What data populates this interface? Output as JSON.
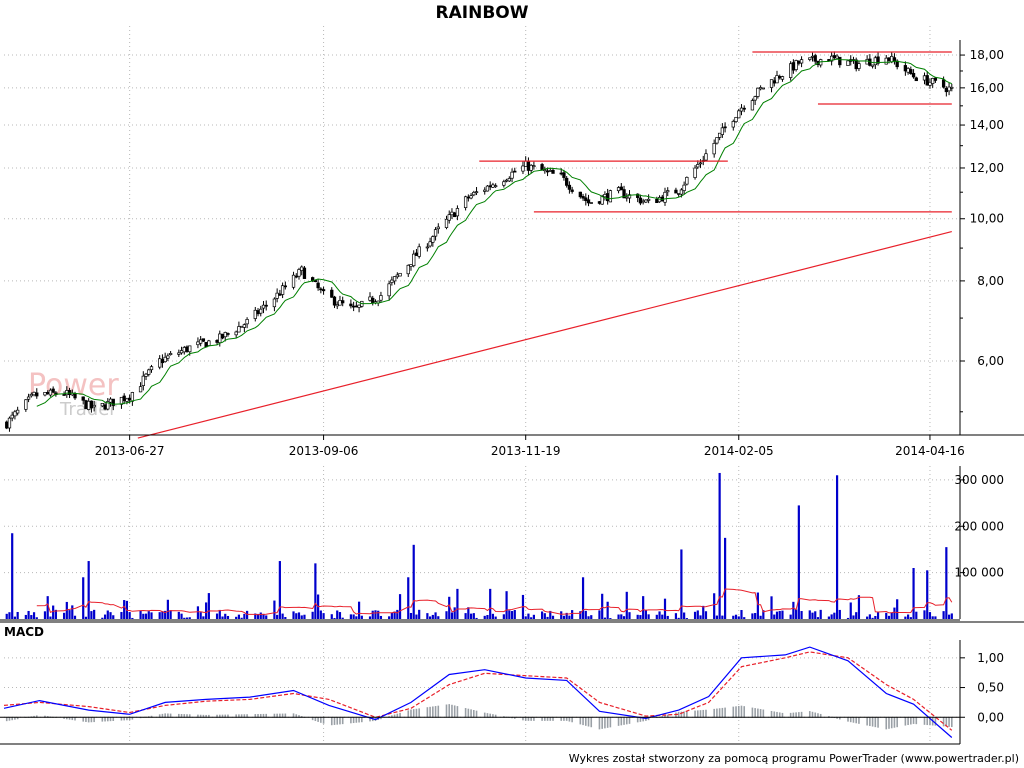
{
  "footer": "Wykres został stworzony za pomocą programu PowerTrader (www.powertrader.pl)",
  "watermark": {
    "line1": "Power",
    "line2": "Trader"
  },
  "colors": {
    "up": "#ffffff",
    "down": "#000000",
    "ma": "#008000",
    "trend": "#e8202a",
    "volume": "#0000cc",
    "vol_avg": "#e8202a",
    "macd": "#0000ff",
    "signal": "#e8202a",
    "hist": "#9aa0a6"
  },
  "chart_data": [
    {
      "type": "candlestick",
      "title": "RAINBOW",
      "scale": "log",
      "ylim": [
        4.6,
        19.0
      ],
      "y_ticks": [
        "6,00",
        "8,00",
        "10,00",
        "12,00",
        "14,00",
        "16,00",
        "18,00"
      ],
      "x_ticks": [
        "2013-06-27",
        "2013-09-06",
        "2013-11-19",
        "2014-02-05",
        "2014-04-16"
      ],
      "x_range": [
        "2013-05-12",
        "2014-04-27"
      ],
      "price_path": [
        [
          "2013-05-13",
          4.8
        ],
        [
          "2013-05-23",
          5.3
        ],
        [
          "2013-06-03",
          5.35
        ],
        [
          "2013-06-14",
          5.05
        ],
        [
          "2013-06-27",
          5.3
        ],
        [
          "2013-07-08",
          6.0
        ],
        [
          "2013-07-19",
          6.3
        ],
        [
          "2013-07-30",
          6.5
        ],
        [
          "2013-08-09",
          6.9
        ],
        [
          "2013-08-20",
          7.6
        ],
        [
          "2013-08-29",
          8.3
        ],
        [
          "2013-09-06",
          7.6
        ],
        [
          "2013-09-17",
          7.2
        ],
        [
          "2013-09-27",
          7.6
        ],
        [
          "2013-10-08",
          8.6
        ],
        [
          "2013-10-18",
          9.6
        ],
        [
          "2013-10-29",
          10.8
        ],
        [
          "2013-11-08",
          11.4
        ],
        [
          "2013-11-19",
          12.1
        ],
        [
          "2013-12-02",
          11.6
        ],
        [
          "2013-12-12",
          10.6
        ],
        [
          "2013-12-23",
          11.0
        ],
        [
          "2014-01-03",
          10.6
        ],
        [
          "2014-01-14",
          11.1
        ],
        [
          "2014-01-24",
          12.6
        ],
        [
          "2014-02-05",
          14.8
        ],
        [
          "2014-02-15",
          16.2
        ],
        [
          "2014-02-27",
          17.5
        ],
        [
          "2014-03-10",
          17.8
        ],
        [
          "2014-03-20",
          17.4
        ],
        [
          "2014-03-31",
          17.9
        ],
        [
          "2014-04-10",
          16.7
        ],
        [
          "2014-04-24",
          15.9
        ]
      ],
      "support_resistance": [
        {
          "from": "2014-02-10",
          "to": "2014-04-24",
          "value": 18.2
        },
        {
          "from": "2014-03-06",
          "to": "2014-04-24",
          "value": 15.1
        },
        {
          "from": "2013-11-02",
          "to": "2014-02-01",
          "value": 12.3
        },
        {
          "from": "2013-11-22",
          "to": "2014-04-24",
          "value": 10.25
        }
      ],
      "trendline": [
        [
          "2013-06-30",
          4.55
        ],
        [
          "2014-04-24",
          9.55
        ]
      ]
    },
    {
      "type": "bar",
      "title": "",
      "y_ticks": [
        "100 000",
        "200 000",
        "300 000"
      ],
      "ylim": [
        0,
        330000
      ],
      "volume_spikes": [
        [
          "2013-05-15",
          185000
        ],
        [
          "2013-06-10",
          90000
        ],
        [
          "2013-06-12",
          125000
        ],
        [
          "2013-06-23",
          70000
        ],
        [
          "2013-08-11",
          68000
        ],
        [
          "2013-08-21",
          125000
        ],
        [
          "2013-09-03",
          120000
        ],
        [
          "2013-10-07",
          90000
        ],
        [
          "2013-10-09",
          160000
        ],
        [
          "2013-10-13",
          105000
        ],
        [
          "2013-10-25",
          65000
        ],
        [
          "2013-11-06",
          65000
        ],
        [
          "2013-11-12",
          60000
        ],
        [
          "2013-12-10",
          90000
        ],
        [
          "2014-01-15",
          150000
        ],
        [
          "2014-01-26",
          110000
        ],
        [
          "2014-01-29",
          315000
        ],
        [
          "2014-01-31",
          175000
        ],
        [
          "2014-02-27",
          245000
        ],
        [
          "2014-03-13",
          310000
        ],
        [
          "2014-03-29",
          105000
        ],
        [
          "2014-04-10",
          110000
        ],
        [
          "2014-04-15",
          105000
        ],
        [
          "2014-04-19",
          330000
        ],
        [
          "2014-04-22",
          155000
        ]
      ]
    },
    {
      "type": "line",
      "title": "MACD",
      "y_ticks": [
        "0,00",
        "0,50",
        "1,00"
      ],
      "ylim": [
        -0.45,
        1.3
      ],
      "series": [
        {
          "values": [
            [
              "2013-05-12",
              0.15
            ],
            [
              "2013-05-25",
              0.28
            ],
            [
              "2013-06-12",
              0.12
            ],
            [
              "2013-06-27",
              0.05
            ],
            [
              "2013-07-10",
              0.25
            ],
            [
              "2013-07-25",
              0.3
            ],
            [
              "2013-08-10",
              0.34
            ],
            [
              "2013-08-26",
              0.45
            ],
            [
              "2013-09-08",
              0.2
            ],
            [
              "2013-09-25",
              -0.04
            ],
            [
              "2013-10-08",
              0.25
            ],
            [
              "2013-10-22",
              0.72
            ],
            [
              "2013-11-04",
              0.8
            ],
            [
              "2013-11-19",
              0.66
            ],
            [
              "2013-12-04",
              0.62
            ],
            [
              "2013-12-16",
              0.1
            ],
            [
              "2014-01-02",
              -0.02
            ],
            [
              "2014-01-14",
              0.12
            ],
            [
              "2014-01-25",
              0.35
            ],
            [
              "2014-02-06",
              1.0
            ],
            [
              "2014-02-22",
              1.05
            ],
            [
              "2014-03-03",
              1.18
            ],
            [
              "2014-03-17",
              0.95
            ],
            [
              "2014-03-31",
              0.4
            ],
            [
              "2014-04-10",
              0.22
            ],
            [
              "2014-04-24",
              -0.34
            ]
          ]
        },
        {
          "values": [
            [
              "2013-05-12",
              0.2
            ],
            [
              "2013-05-25",
              0.25
            ],
            [
              "2013-06-12",
              0.18
            ],
            [
              "2013-06-27",
              0.08
            ],
            [
              "2013-07-10",
              0.2
            ],
            [
              "2013-07-25",
              0.27
            ],
            [
              "2013-08-10",
              0.3
            ],
            [
              "2013-08-26",
              0.4
            ],
            [
              "2013-09-08",
              0.3
            ],
            [
              "2013-09-25",
              0.0
            ],
            [
              "2013-10-08",
              0.15
            ],
            [
              "2013-10-22",
              0.55
            ],
            [
              "2013-11-04",
              0.74
            ],
            [
              "2013-11-19",
              0.7
            ],
            [
              "2013-12-04",
              0.66
            ],
            [
              "2013-12-16",
              0.25
            ],
            [
              "2014-01-02",
              0.02
            ],
            [
              "2014-01-14",
              0.05
            ],
            [
              "2014-01-25",
              0.25
            ],
            [
              "2014-02-06",
              0.85
            ],
            [
              "2014-02-22",
              1.0
            ],
            [
              "2014-03-03",
              1.1
            ],
            [
              "2014-03-17",
              1.0
            ],
            [
              "2014-03-31",
              0.55
            ],
            [
              "2014-04-10",
              0.3
            ],
            [
              "2014-04-24",
              -0.22
            ]
          ]
        }
      ]
    }
  ]
}
